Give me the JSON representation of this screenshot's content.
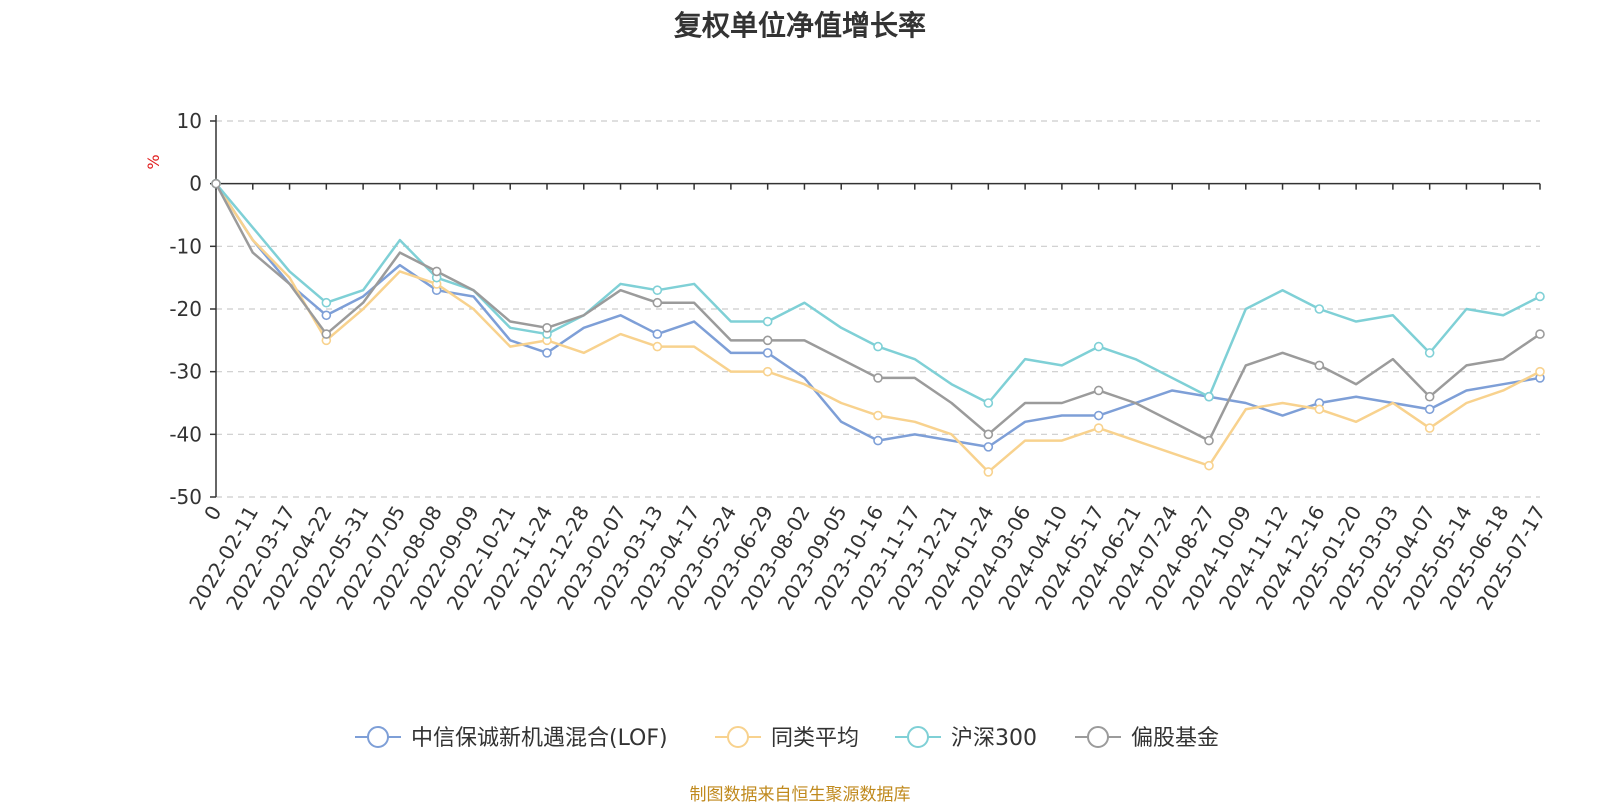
{
  "chart_data": {
    "type": "line",
    "title": "复权单位净值增长率",
    "ylabel": "%",
    "ylim": [
      -50,
      10
    ],
    "yticks": [
      10,
      0,
      -10,
      -20,
      -30,
      -40,
      -50
    ],
    "categories": [
      "0",
      "2022-02-11",
      "2022-03-17",
      "2022-04-22",
      "2022-05-31",
      "2022-07-05",
      "2022-08-08",
      "2022-09-09",
      "2022-10-21",
      "2022-11-24",
      "2022-12-28",
      "2023-02-07",
      "2023-03-13",
      "2023-04-17",
      "2023-05-24",
      "2023-06-29",
      "2023-08-02",
      "2023-09-05",
      "2023-10-16",
      "2023-11-17",
      "2023-12-21",
      "2024-01-24",
      "2024-03-06",
      "2024-04-10",
      "2024-05-17",
      "2024-06-21",
      "2024-07-24",
      "2024-08-27",
      "2024-10-09",
      "2024-11-12",
      "2024-12-16",
      "2025-01-20",
      "2025-03-03",
      "2025-04-07",
      "2025-05-14",
      "2025-06-18",
      "2025-07-17"
    ],
    "grid": true,
    "legend_position": "bottom",
    "series": [
      {
        "name": "中信保诚新机遇混合(LOF)",
        "color": "#7e9fd7",
        "values": [
          0,
          -9,
          -16,
          -21,
          -18,
          -13,
          -17,
          -18,
          -25,
          -27,
          -23,
          -21,
          -24,
          -22,
          -27,
          -27,
          -31,
          -38,
          -41,
          -40,
          -41,
          -42,
          -38,
          -37,
          -37,
          -35,
          -33,
          -34,
          -35,
          -37,
          -35,
          -34,
          -35,
          -36,
          -33,
          -32,
          -31
        ]
      },
      {
        "name": "同类平均",
        "color": "#f8d28e",
        "values": [
          0,
          -9,
          -15,
          -25,
          -20,
          -14,
          -16,
          -20,
          -26,
          -25,
          -27,
          -24,
          -26,
          -26,
          -30,
          -30,
          -32,
          -35,
          -37,
          -38,
          -40,
          -46,
          -41,
          -41,
          -39,
          -41,
          -43,
          -45,
          -36,
          -35,
          -36,
          -38,
          -35,
          -39,
          -35,
          -33,
          -30
        ]
      },
      {
        "name": "沪深300",
        "color": "#7fd0d6",
        "values": [
          0,
          -7,
          -14,
          -19,
          -17,
          -9,
          -15,
          -17,
          -23,
          -24,
          -21,
          -16,
          -17,
          -16,
          -22,
          -22,
          -19,
          -23,
          -26,
          -28,
          -32,
          -35,
          -28,
          -29,
          -26,
          -28,
          -31,
          -34,
          -20,
          -17,
          -20,
          -22,
          -21,
          -27,
          -20,
          -21,
          -18
        ]
      },
      {
        "name": "偏股基金",
        "color": "#9b9b9b",
        "values": [
          0,
          -11,
          -16,
          -24,
          -19,
          -11,
          -14,
          -17,
          -22,
          -23,
          -21,
          -17,
          -19,
          -19,
          -25,
          -25,
          -25,
          -28,
          -31,
          -31,
          -35,
          -40,
          -35,
          -35,
          -33,
          -35,
          -38,
          -41,
          -29,
          -27,
          -29,
          -32,
          -28,
          -34,
          -29,
          -28,
          -24
        ]
      }
    ]
  },
  "footer": {
    "source": "制图数据来自恒生聚源数据库"
  }
}
